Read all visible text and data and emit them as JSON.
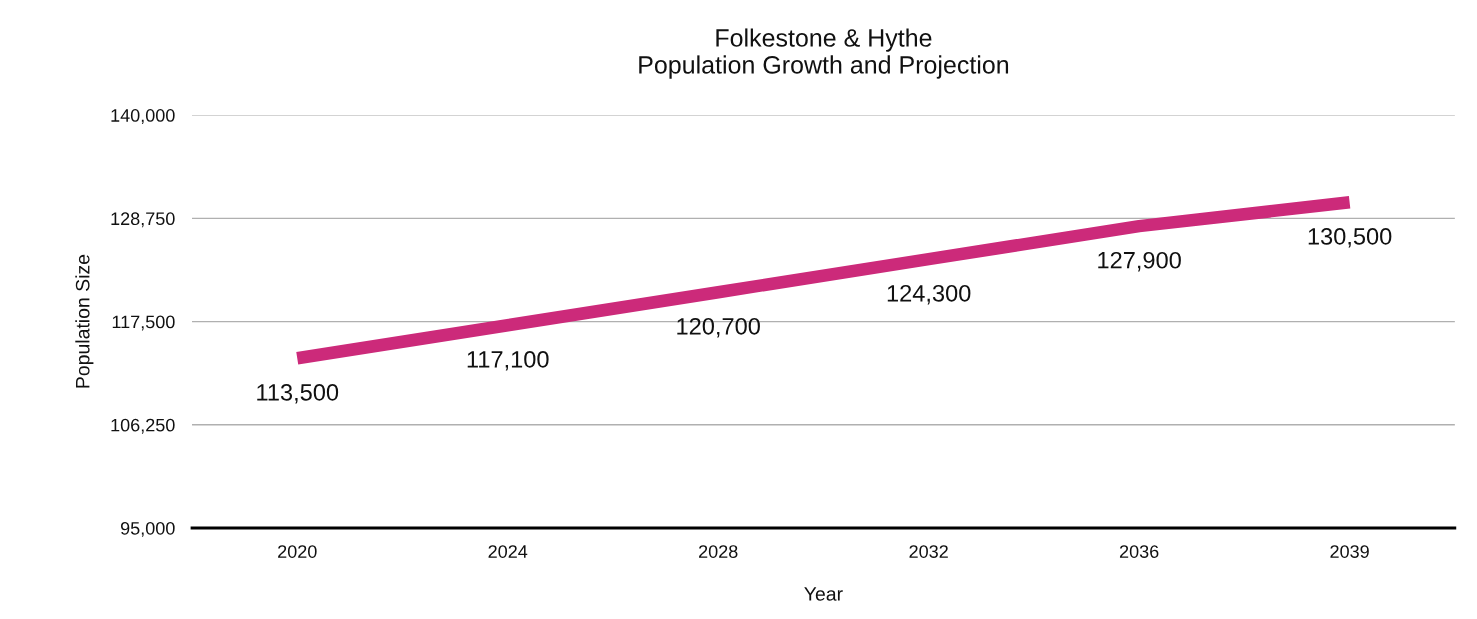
{
  "chart_data": {
    "type": "line",
    "title": "Folkestone & Hythe\nPopulation Growth and Projection",
    "xlabel": "Year",
    "ylabel": "Population Size",
    "categories": [
      "2020",
      "2024",
      "2028",
      "2032",
      "2036",
      "2039"
    ],
    "series": [
      {
        "color": "#cc2a7a",
        "values": [
          113500,
          117100,
          120700,
          124300,
          127900,
          130500
        ],
        "value_labels": [
          "113,500",
          "117,100",
          "120,700",
          "124,300",
          "127,900",
          "130,500"
        ]
      }
    ],
    "ylim": [
      95000,
      140000
    ],
    "yticks": [
      {
        "value": 95000,
        "label": "95,000"
      },
      {
        "value": 106250,
        "label": "106,250"
      },
      {
        "value": 117500,
        "label": "117,500"
      },
      {
        "value": 128750,
        "label": "128,750"
      },
      {
        "value": 140000,
        "label": "140,000"
      }
    ],
    "grid": "y",
    "legend": false,
    "marker": "none",
    "line_style": "solid"
  }
}
